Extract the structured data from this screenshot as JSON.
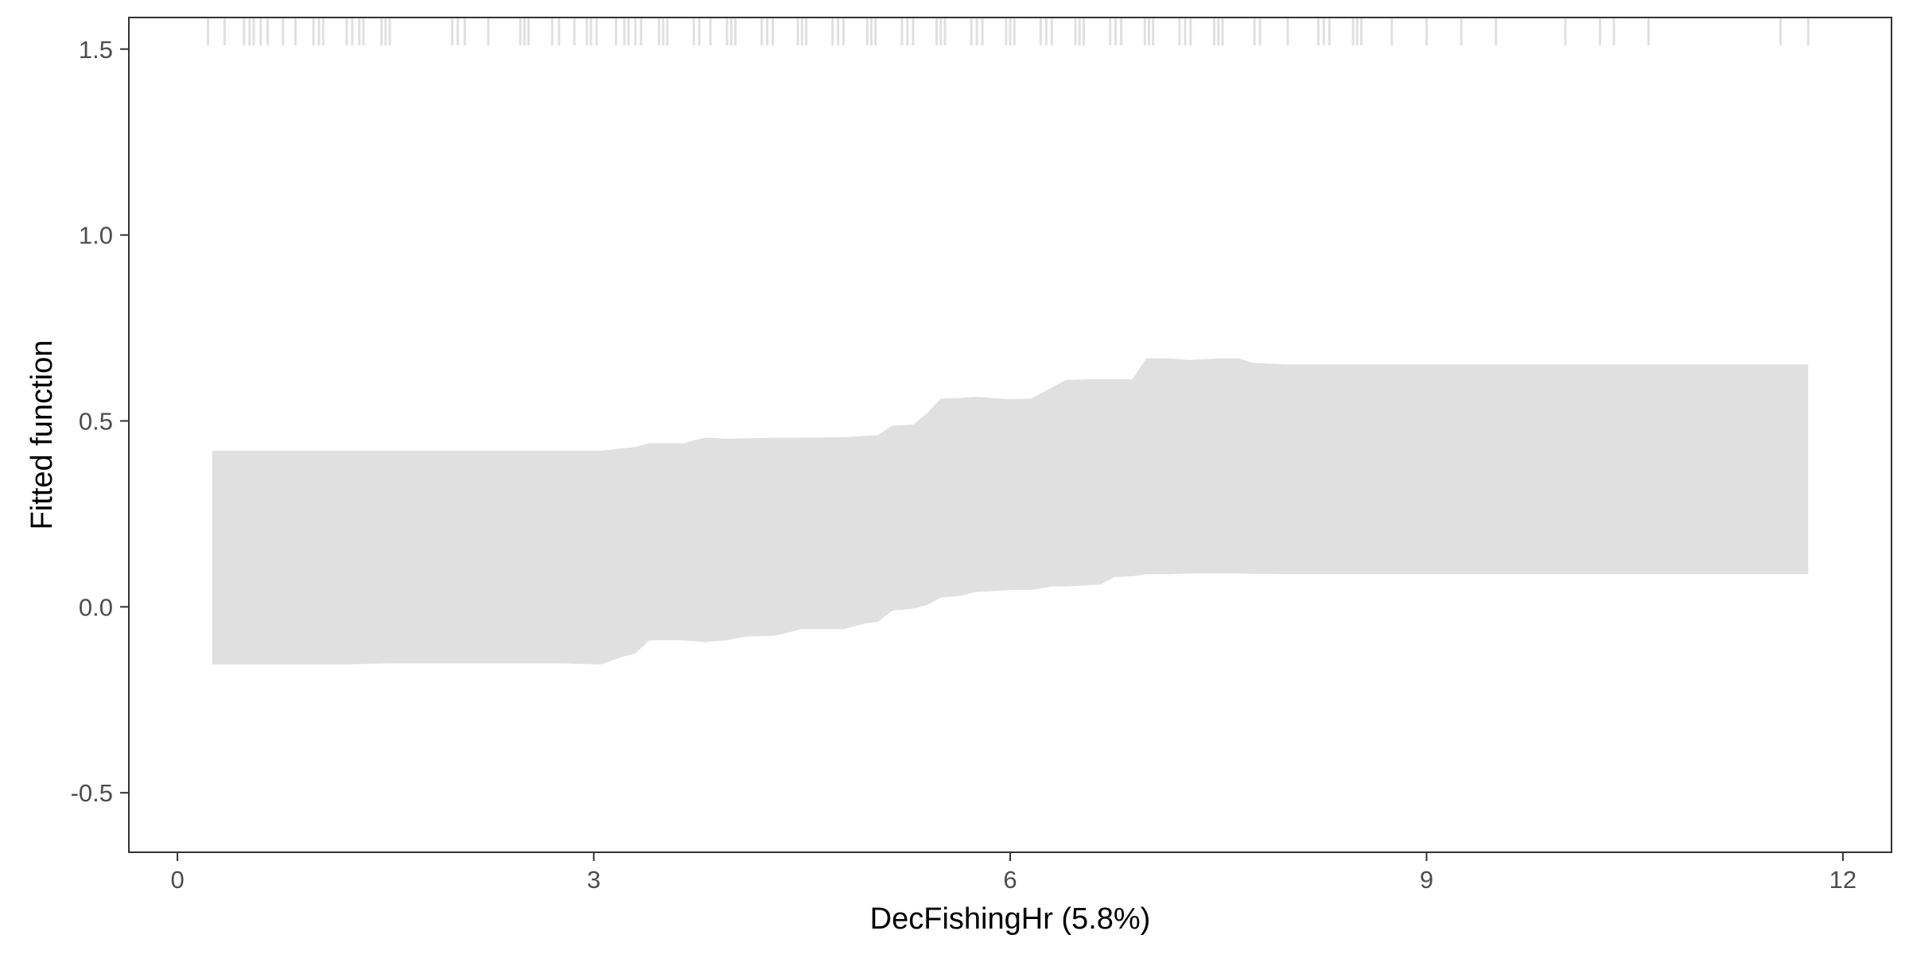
{
  "chart_data": {
    "type": "area",
    "xlabel": "DecFishingHr  (5.8%)",
    "ylabel": "Fitted function",
    "xlim": [
      -0.35,
      12.35
    ],
    "ylim": [
      -0.66,
      1.585
    ],
    "x_ticks": [
      0,
      3,
      6,
      9,
      12
    ],
    "x_tick_labels": [
      "0",
      "3",
      "6",
      "9",
      "12"
    ],
    "y_ticks": [
      -0.5,
      0.0,
      0.5,
      1.0,
      1.5
    ],
    "y_tick_labels": [
      "-0.5",
      "0.0",
      "0.5",
      "1.0",
      "1.5"
    ],
    "grid": false,
    "band": {
      "color": "#e0e0e0",
      "points": [
        {
          "x": 0.25,
          "lower": -0.155,
          "upper": 0.42
        },
        {
          "x": 1.25,
          "lower": -0.155,
          "upper": 0.42
        },
        {
          "x": 1.5,
          "lower": -0.152,
          "upper": 0.42
        },
        {
          "x": 2.2,
          "lower": -0.152,
          "upper": 0.42
        },
        {
          "x": 2.75,
          "lower": -0.152,
          "upper": 0.42
        },
        {
          "x": 3.05,
          "lower": -0.155,
          "upper": 0.42
        },
        {
          "x": 3.2,
          "lower": -0.135,
          "upper": 0.426
        },
        {
          "x": 3.3,
          "lower": -0.125,
          "upper": 0.43
        },
        {
          "x": 3.4,
          "lower": -0.09,
          "upper": 0.44
        },
        {
          "x": 3.65,
          "lower": -0.09,
          "upper": 0.44
        },
        {
          "x": 3.8,
          "lower": -0.095,
          "upper": 0.455
        },
        {
          "x": 3.95,
          "lower": -0.09,
          "upper": 0.452
        },
        {
          "x": 4.1,
          "lower": -0.08,
          "upper": 0.453
        },
        {
          "x": 4.3,
          "lower": -0.078,
          "upper": 0.455
        },
        {
          "x": 4.5,
          "lower": -0.06,
          "upper": 0.455
        },
        {
          "x": 4.8,
          "lower": -0.06,
          "upper": 0.456
        },
        {
          "x": 4.95,
          "lower": -0.045,
          "upper": 0.46
        },
        {
          "x": 5.05,
          "lower": -0.04,
          "upper": 0.462
        },
        {
          "x": 5.15,
          "lower": -0.01,
          "upper": 0.487
        },
        {
          "x": 5.3,
          "lower": -0.005,
          "upper": 0.49
        },
        {
          "x": 5.4,
          "lower": 0.005,
          "upper": 0.52
        },
        {
          "x": 5.5,
          "lower": 0.025,
          "upper": 0.56
        },
        {
          "x": 5.65,
          "lower": 0.03,
          "upper": 0.562
        },
        {
          "x": 5.75,
          "lower": 0.04,
          "upper": 0.565
        },
        {
          "x": 6.0,
          "lower": 0.045,
          "upper": 0.558
        },
        {
          "x": 6.15,
          "lower": 0.045,
          "upper": 0.56
        },
        {
          "x": 6.3,
          "lower": 0.055,
          "upper": 0.59
        },
        {
          "x": 6.4,
          "lower": 0.055,
          "upper": 0.61
        },
        {
          "x": 6.55,
          "lower": 0.058,
          "upper": 0.612
        },
        {
          "x": 6.65,
          "lower": 0.06,
          "upper": 0.612
        },
        {
          "x": 6.75,
          "lower": 0.08,
          "upper": 0.612
        },
        {
          "x": 6.88,
          "lower": 0.082,
          "upper": 0.612
        },
        {
          "x": 6.98,
          "lower": 0.088,
          "upper": 0.668
        },
        {
          "x": 7.15,
          "lower": 0.088,
          "upper": 0.668
        },
        {
          "x": 7.3,
          "lower": 0.09,
          "upper": 0.664
        },
        {
          "x": 7.5,
          "lower": 0.09,
          "upper": 0.668
        },
        {
          "x": 7.65,
          "lower": 0.09,
          "upper": 0.668
        },
        {
          "x": 7.75,
          "lower": 0.089,
          "upper": 0.656
        },
        {
          "x": 8.0,
          "lower": 0.088,
          "upper": 0.652
        },
        {
          "x": 8.8,
          "lower": 0.088,
          "upper": 0.652
        },
        {
          "x": 11.75,
          "lower": 0.088,
          "upper": 0.652
        }
      ]
    },
    "rug": {
      "color": "#e0e0e0",
      "y_top": 1.585,
      "y_bottom": 1.51,
      "x": [
        0.22,
        0.34,
        0.48,
        0.52,
        0.55,
        0.6,
        0.65,
        0.76,
        0.85,
        0.98,
        1.02,
        1.05,
        1.22,
        1.26,
        1.31,
        1.34,
        1.47,
        1.5,
        1.53,
        1.98,
        2.02,
        2.07,
        2.24,
        2.47,
        2.5,
        2.53,
        2.7,
        2.75,
        2.86,
        2.95,
        2.98,
        3.02,
        3.16,
        3.22,
        3.25,
        3.3,
        3.34,
        3.47,
        3.5,
        3.53,
        3.72,
        3.76,
        3.84,
        3.96,
        3.99,
        4.02,
        4.21,
        4.25,
        4.29,
        4.47,
        4.5,
        4.53,
        4.72,
        4.76,
        4.8,
        4.97,
        5.0,
        5.03,
        5.22,
        5.26,
        5.3,
        5.47,
        5.5,
        5.53,
        5.72,
        5.76,
        5.8,
        5.97,
        6.0,
        6.03,
        6.22,
        6.26,
        6.3,
        6.47,
        6.5,
        6.53,
        6.72,
        6.76,
        6.8,
        6.97,
        7.0,
        7.03,
        7.22,
        7.26,
        7.3,
        7.47,
        7.5,
        7.53,
        7.76,
        7.8,
        8.0,
        8.22,
        8.26,
        8.3,
        8.47,
        8.5,
        8.53,
        8.75,
        9.0,
        9.25,
        9.5,
        10.0,
        10.25,
        10.35,
        10.6,
        11.55,
        11.75
      ]
    }
  }
}
